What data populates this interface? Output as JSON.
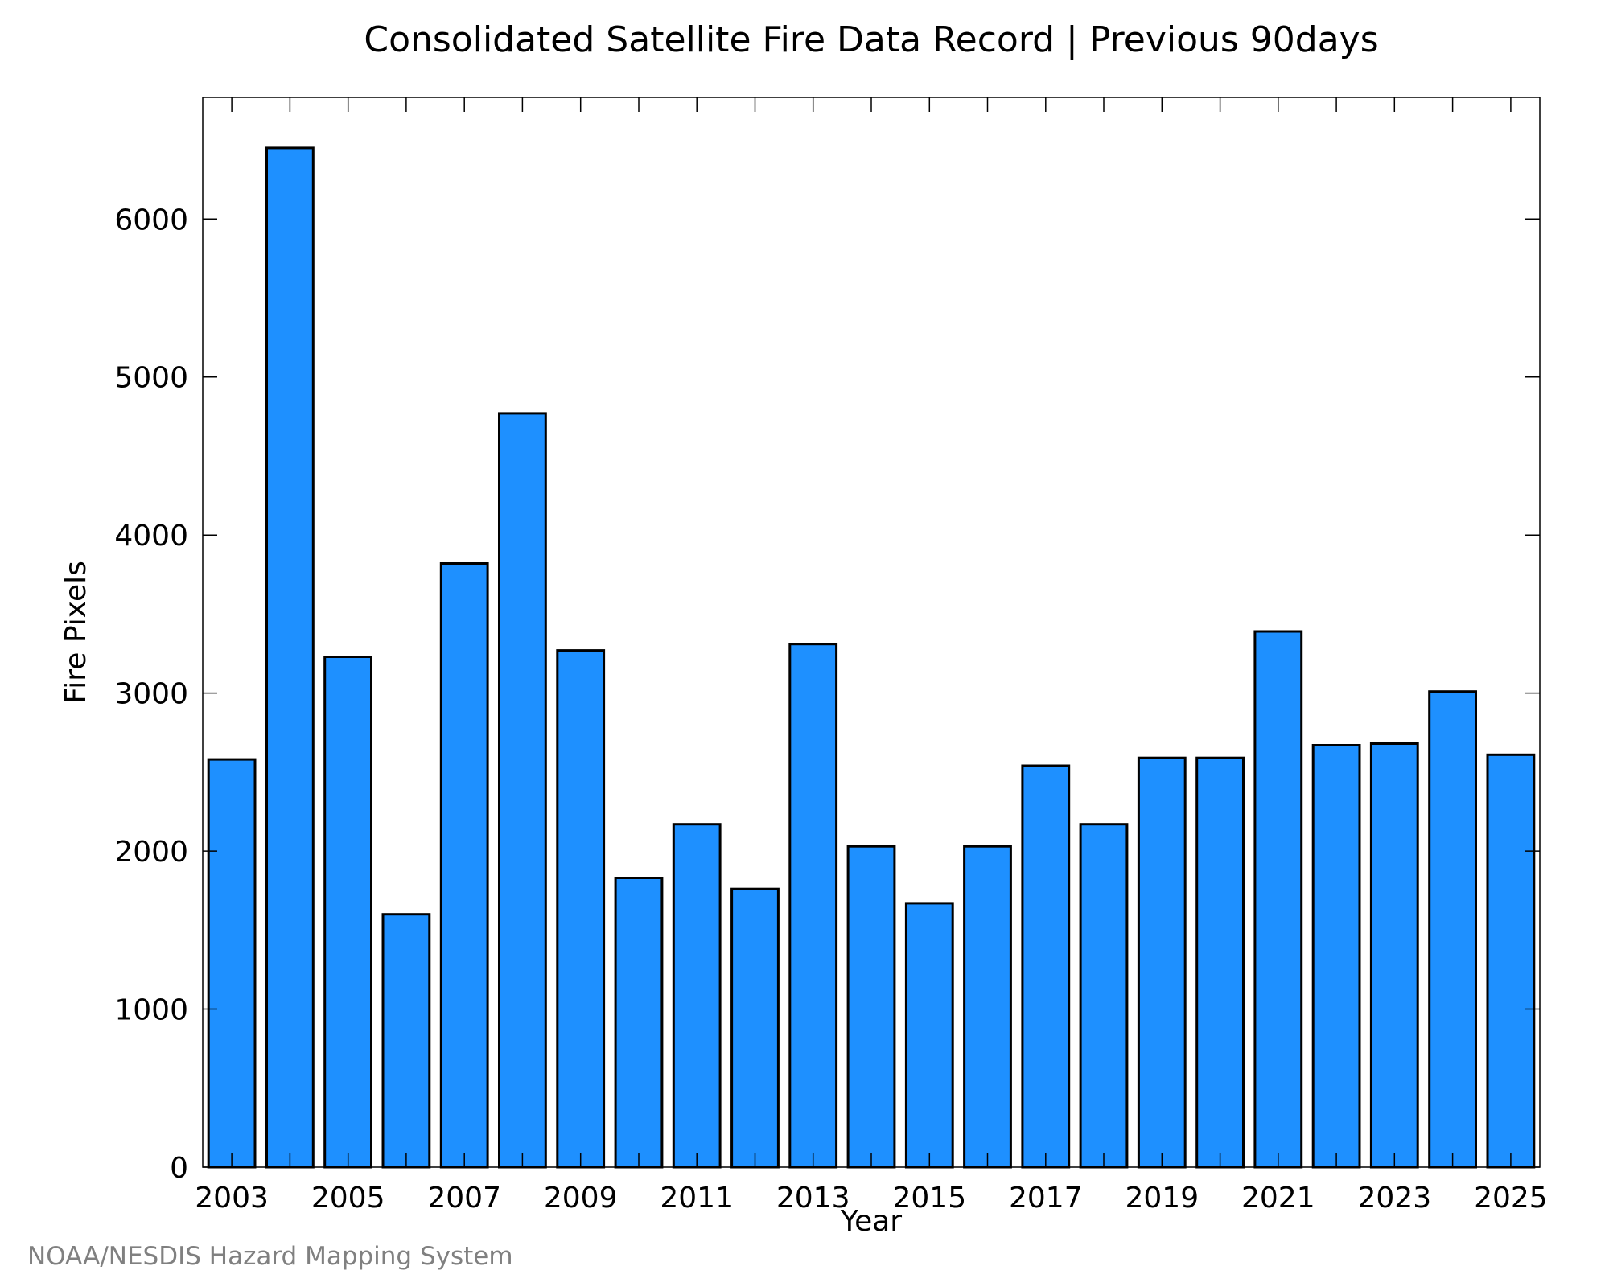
{
  "chart_data": {
    "type": "bar",
    "title": "Consolidated Satellite Fire Data Record | Previous 90days",
    "xlabel": "Year",
    "ylabel": "Fire Pixels",
    "categories": [
      "2003",
      "2004",
      "2005",
      "2006",
      "2007",
      "2008",
      "2009",
      "2010",
      "2011",
      "2012",
      "2013",
      "2014",
      "2015",
      "2016",
      "2017",
      "2018",
      "2019",
      "2020",
      "2021",
      "2022",
      "2023",
      "2024",
      "2025"
    ],
    "values": [
      2580,
      6450,
      3230,
      1600,
      3820,
      4770,
      3270,
      1830,
      2170,
      1760,
      3310,
      2030,
      1670,
      2030,
      2540,
      2170,
      2590,
      2590,
      3390,
      2670,
      2680,
      3010,
      2610
    ],
    "x_tick_labels": [
      "2003",
      "2005",
      "2007",
      "2009",
      "2011",
      "2013",
      "2015",
      "2017",
      "2019",
      "2021",
      "2023",
      "2025"
    ],
    "y_ticks": [
      0,
      1000,
      2000,
      3000,
      4000,
      5000,
      6000
    ],
    "ylim": [
      0,
      6770
    ],
    "grid": false,
    "bar_color": "#1e90ff"
  },
  "footer": {
    "credit": "NOAA/NESDIS Hazard Mapping System"
  }
}
